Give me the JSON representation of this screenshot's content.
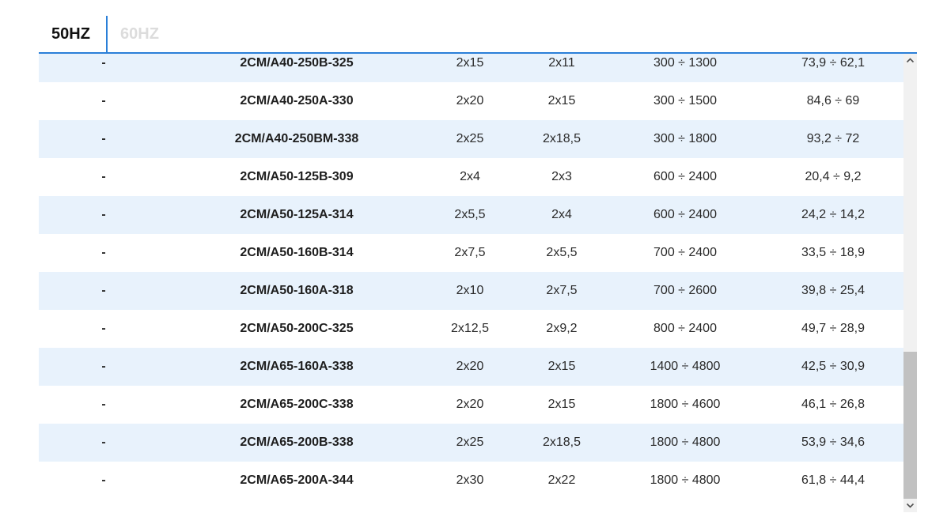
{
  "tabs": [
    {
      "label": "50HZ",
      "active": true
    },
    {
      "label": "60HZ",
      "active": false
    }
  ],
  "table": {
    "rows": [
      {
        "code": "-",
        "model": "2CM/A40-250B-325",
        "p1": "2x15",
        "p2": "2x11",
        "q": "300 ÷ 1300",
        "h": "73,9 ÷ 62,1"
      },
      {
        "code": "-",
        "model": "2CM/A40-250A-330",
        "p1": "2x20",
        "p2": "2x15",
        "q": "300 ÷ 1500",
        "h": "84,6 ÷ 69"
      },
      {
        "code": "-",
        "model": "2CM/A40-250BM-338",
        "p1": "2x25",
        "p2": "2x18,5",
        "q": "300 ÷ 1800",
        "h": "93,2 ÷ 72"
      },
      {
        "code": "-",
        "model": "2CM/A50-125B-309",
        "p1": "2x4",
        "p2": "2x3",
        "q": "600 ÷ 2400",
        "h": "20,4 ÷ 9,2"
      },
      {
        "code": "-",
        "model": "2CM/A50-125A-314",
        "p1": "2x5,5",
        "p2": "2x4",
        "q": "600 ÷ 2400",
        "h": "24,2 ÷ 14,2"
      },
      {
        "code": "-",
        "model": "2CM/A50-160B-314",
        "p1": "2x7,5",
        "p2": "2x5,5",
        "q": "700 ÷ 2400",
        "h": "33,5 ÷ 18,9"
      },
      {
        "code": "-",
        "model": "2CM/A50-160A-318",
        "p1": "2x10",
        "p2": "2x7,5",
        "q": "700 ÷ 2600",
        "h": "39,8 ÷ 25,4"
      },
      {
        "code": "-",
        "model": "2CM/A50-200C-325",
        "p1": "2x12,5",
        "p2": "2x9,2",
        "q": "800 ÷ 2400",
        "h": "49,7 ÷ 28,9"
      },
      {
        "code": "-",
        "model": "2CM/A65-160A-338",
        "p1": "2x20",
        "p2": "2x15",
        "q": "1400 ÷ 4800",
        "h": "42,5 ÷ 30,9"
      },
      {
        "code": "-",
        "model": "2CM/A65-200C-338",
        "p1": "2x20",
        "p2": "2x15",
        "q": "1800 ÷ 4600",
        "h": "46,1 ÷ 26,8"
      },
      {
        "code": "-",
        "model": "2CM/A65-200B-338",
        "p1": "2x25",
        "p2": "2x18,5",
        "q": "1800 ÷ 4800",
        "h": "53,9 ÷ 34,6"
      },
      {
        "code": "-",
        "model": "2CM/A65-200A-344",
        "p1": "2x30",
        "p2": "2x22",
        "q": "1800 ÷ 4800",
        "h": "61,8 ÷ 44,4"
      }
    ]
  },
  "colors": {
    "accent": "#2a7fd8",
    "row_alt": "#e8f2fc",
    "tab_inactive": "#dcdcdc"
  },
  "icons": {
    "scroll_up": "chevron-up-icon",
    "scroll_down": "chevron-down-icon"
  }
}
